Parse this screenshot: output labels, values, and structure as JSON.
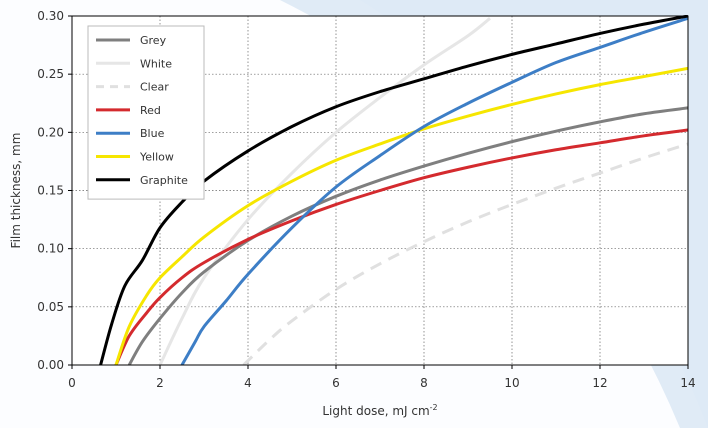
{
  "chart_data": {
    "type": "line",
    "xlabel": "Light dose, mJ cm",
    "xlabel_sup": "-2",
    "ylabel": "Film thickness, mm",
    "xlim": [
      0,
      14
    ],
    "ylim": [
      0,
      0.3
    ],
    "xticks": [
      "0",
      "2",
      "4",
      "6",
      "8",
      "10",
      "12",
      "14"
    ],
    "yticks": [
      "0.00",
      "0.05",
      "0.10",
      "0.15",
      "0.20",
      "0.25",
      "0.30"
    ],
    "grid": true,
    "legend_position": "top-left",
    "series": [
      {
        "name": "Grey",
        "color": "#7f7f7f",
        "dashed": false,
        "x": [
          1.3,
          1.6,
          2.0,
          2.5,
          3.0,
          4.0,
          5.0,
          6.0,
          7.0,
          8.0,
          9.0,
          10.0,
          11.0,
          12.0,
          13.0,
          14.0
        ],
        "y": [
          0.0,
          0.02,
          0.04,
          0.062,
          0.08,
          0.107,
          0.128,
          0.145,
          0.159,
          0.171,
          0.182,
          0.192,
          0.201,
          0.209,
          0.216,
          0.221
        ]
      },
      {
        "name": "White",
        "color": "#e6e6e6",
        "dashed": false,
        "x": [
          2.0,
          2.5,
          3.0,
          4.0,
          5.0,
          6.0,
          7.0,
          8.0,
          9.0,
          9.5
        ],
        "y": [
          0.0,
          0.04,
          0.075,
          0.125,
          0.165,
          0.2,
          0.23,
          0.258,
          0.283,
          0.298
        ]
      },
      {
        "name": "Clear",
        "color": "#e0e0e0",
        "dashed": true,
        "x": [
          3.9,
          4.5,
          5.0,
          6.0,
          7.0,
          8.0,
          9.0,
          10.0,
          11.0,
          12.0,
          13.0,
          14.0
        ],
        "y": [
          0.0,
          0.022,
          0.038,
          0.065,
          0.087,
          0.106,
          0.123,
          0.138,
          0.152,
          0.165,
          0.178,
          0.19
        ]
      },
      {
        "name": "Red",
        "color": "#d42a2e",
        "dashed": false,
        "x": [
          1.0,
          1.3,
          1.7,
          2.0,
          2.5,
          3.0,
          4.0,
          5.0,
          6.0,
          7.0,
          8.0,
          9.0,
          10.0,
          11.0,
          12.0,
          13.0,
          14.0
        ],
        "y": [
          0.0,
          0.025,
          0.045,
          0.058,
          0.075,
          0.088,
          0.108,
          0.124,
          0.138,
          0.15,
          0.161,
          0.17,
          0.178,
          0.185,
          0.191,
          0.197,
          0.202
        ]
      },
      {
        "name": "Blue",
        "color": "#3d7ec6",
        "dashed": false,
        "x": [
          2.5,
          2.8,
          3.0,
          3.5,
          4.0,
          5.0,
          6.0,
          7.0,
          8.0,
          9.0,
          10.0,
          11.0,
          12.0,
          13.0,
          14.0
        ],
        "y": [
          0.0,
          0.02,
          0.033,
          0.055,
          0.078,
          0.118,
          0.153,
          0.18,
          0.205,
          0.225,
          0.243,
          0.26,
          0.273,
          0.286,
          0.298
        ]
      },
      {
        "name": "Yellow",
        "color": "#f6e600",
        "dashed": false,
        "x": [
          1.0,
          1.3,
          1.7,
          2.0,
          2.5,
          3.0,
          4.0,
          5.0,
          6.0,
          7.0,
          8.0,
          9.0,
          10.0,
          11.0,
          12.0,
          13.0,
          14.0
        ],
        "y": [
          0.0,
          0.033,
          0.06,
          0.075,
          0.093,
          0.11,
          0.137,
          0.158,
          0.176,
          0.19,
          0.203,
          0.214,
          0.224,
          0.233,
          0.241,
          0.248,
          0.255
        ]
      },
      {
        "name": "Graphite",
        "color": "#000000",
        "dashed": false,
        "x": [
          0.65,
          0.9,
          1.2,
          1.6,
          2.0,
          2.5,
          3.0,
          4.0,
          5.0,
          6.0,
          7.0,
          8.0,
          9.0,
          10.0,
          11.0,
          12.0,
          13.0,
          14.0
        ],
        "y": [
          0.0,
          0.035,
          0.068,
          0.09,
          0.118,
          0.14,
          0.158,
          0.184,
          0.205,
          0.222,
          0.235,
          0.246,
          0.257,
          0.267,
          0.276,
          0.285,
          0.293,
          0.3
        ]
      }
    ]
  }
}
